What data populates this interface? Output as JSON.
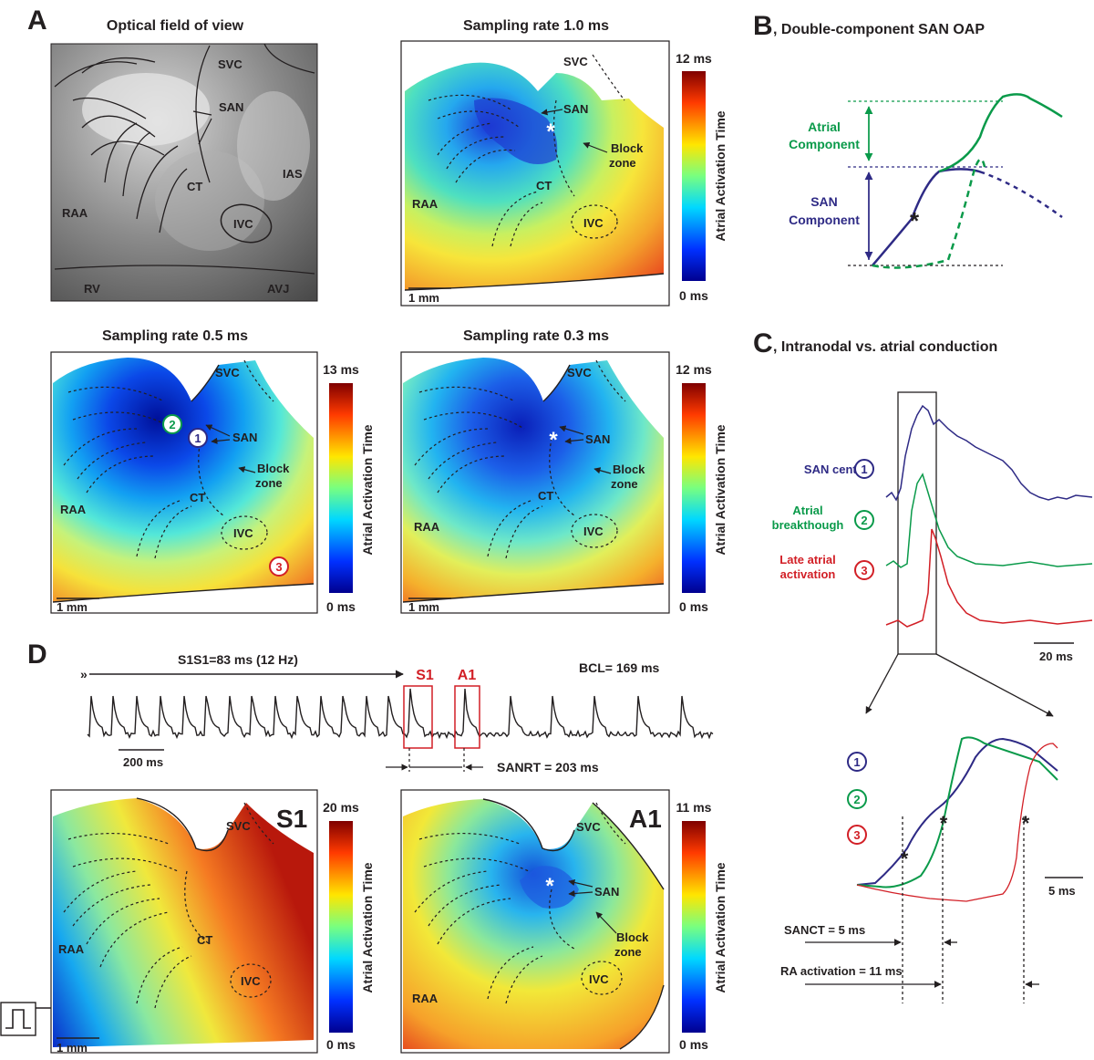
{
  "panel_letters": {
    "a": "A",
    "b": "B",
    "c": "C",
    "d": "D"
  },
  "panel_titles": {
    "b": ", Double-component SAN OAP",
    "c": ", Intranodal vs. atrial conduction"
  },
  "colorbar_label": "Atrial Activation Time",
  "colorbar_min": "0 ms",
  "scale_1mm": "1 mm",
  "maps": {
    "optical": {
      "title": "Optical field of view"
    },
    "rate10": {
      "title": "Sampling rate 1.0 ms",
      "max": "12 ms"
    },
    "rate05": {
      "title": "Sampling rate 0.5 ms",
      "max": "13 ms"
    },
    "rate03": {
      "title": "Sampling rate 0.3 ms",
      "max": "12 ms"
    },
    "s1": {
      "title": "S1",
      "max": "20 ms"
    },
    "a1": {
      "title": "A1",
      "max": "11 ms"
    }
  },
  "anatomy": {
    "svc": "SVC",
    "san": "SAN",
    "ias": "IAS",
    "ct": "CT",
    "raa": "RAA",
    "ivc": "IVC",
    "rv": "RV",
    "avj": "AVJ",
    "block_1": "Block",
    "block_2": "zone"
  },
  "site_numbers": [
    "1",
    "2",
    "3"
  ],
  "oap": {
    "atrial_1": "Atrial",
    "atrial_2": "Component",
    "san_1": "SAN",
    "san_2": "Component"
  },
  "traces": {
    "san_center": "SAN center",
    "atrial_1": "Atrial",
    "atrial_2": "breakthough",
    "late_1": "Late atrial",
    "late_2": "activation",
    "scale_20ms": "20 ms",
    "scale_5ms": "5 ms",
    "sanct": "SANCT = 5 ms",
    "ra_activation": "RA activation = 11 ms"
  },
  "pacing": {
    "s1s1": "S1S1=83 ms (12 Hz)",
    "s1_label": "S1",
    "a1_label": "A1",
    "bcl": "BCL= 169 ms",
    "scale_200ms": "200 ms",
    "sanrt": "SANRT = 203 ms"
  },
  "colors": {
    "san": "#2e2a85",
    "atrial": "#0a9a4a",
    "late": "#d21f26",
    "box": "#d21f26",
    "text": "#231f20"
  }
}
